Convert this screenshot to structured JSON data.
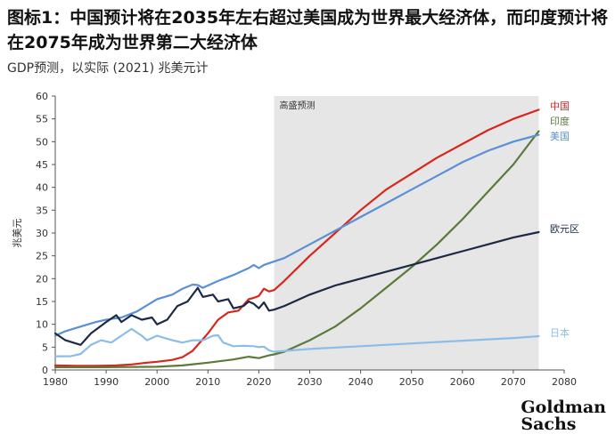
{
  "title": "图标1：中国预计将在2035年左右超过美国成为世界最大经济体，而印度预计将在2075年成为世界第二大经济体",
  "subtitle": "GDP预测，以实际 (2021) 兆美元计",
  "brand": {
    "line1": "Goldman",
    "line2": "Sachs"
  },
  "chart_data": {
    "type": "line",
    "ylabel": "兆美元",
    "xlim": [
      1980,
      2080
    ],
    "ylim": [
      0,
      60
    ],
    "x_ticks": [
      1980,
      1990,
      2000,
      2010,
      2020,
      2030,
      2040,
      2050,
      2060,
      2070,
      2080
    ],
    "y_ticks": [
      0,
      5,
      10,
      15,
      20,
      25,
      30,
      35,
      40,
      45,
      50,
      55,
      60
    ],
    "shaded_region": {
      "label": "高盛预测",
      "x_start": 2023,
      "x_end": 2075,
      "color": "#e6e6e6"
    },
    "grid": false,
    "legend": "right-end labels",
    "series": [
      {
        "name": "中国",
        "color": "#d9261c",
        "points": [
          [
            1980,
            1.0
          ],
          [
            1984,
            0.9
          ],
          [
            1988,
            0.9
          ],
          [
            1992,
            1.0
          ],
          [
            1995,
            1.2
          ],
          [
            1998,
            1.6
          ],
          [
            2000,
            1.8
          ],
          [
            2003,
            2.2
          ],
          [
            2005,
            2.8
          ],
          [
            2007,
            4.2
          ],
          [
            2008,
            5.5
          ],
          [
            2010,
            8.0
          ],
          [
            2012,
            11.0
          ],
          [
            2014,
            12.6
          ],
          [
            2016,
            13.0
          ],
          [
            2018,
            15.5
          ],
          [
            2019,
            15.8
          ],
          [
            2020,
            16.2
          ],
          [
            2021,
            17.8
          ],
          [
            2022,
            17.2
          ],
          [
            2023,
            17.5
          ],
          [
            2025,
            19.5
          ],
          [
            2030,
            25.0
          ],
          [
            2035,
            30.0
          ],
          [
            2040,
            35.0
          ],
          [
            2045,
            39.5
          ],
          [
            2050,
            43.0
          ],
          [
            2055,
            46.5
          ],
          [
            2060,
            49.5
          ],
          [
            2065,
            52.5
          ],
          [
            2070,
            55.0
          ],
          [
            2075,
            57.0
          ]
        ]
      },
      {
        "name": "印度",
        "color": "#5b7a3a",
        "points": [
          [
            1980,
            0.6
          ],
          [
            1990,
            0.6
          ],
          [
            2000,
            0.7
          ],
          [
            2005,
            1.0
          ],
          [
            2010,
            1.6
          ],
          [
            2015,
            2.3
          ],
          [
            2018,
            2.9
          ],
          [
            2020,
            2.6
          ],
          [
            2022,
            3.2
          ],
          [
            2023,
            3.4
          ],
          [
            2025,
            4.0
          ],
          [
            2030,
            6.5
          ],
          [
            2035,
            9.5
          ],
          [
            2040,
            13.5
          ],
          [
            2045,
            18.0
          ],
          [
            2050,
            22.5
          ],
          [
            2055,
            27.5
          ],
          [
            2060,
            33.0
          ],
          [
            2065,
            39.0
          ],
          [
            2070,
            45.0
          ],
          [
            2075,
            52.3
          ]
        ]
      },
      {
        "name": "美国",
        "color": "#5b8fd6",
        "points": [
          [
            1980,
            7.5
          ],
          [
            1982,
            8.5
          ],
          [
            1985,
            9.5
          ],
          [
            1988,
            10.5
          ],
          [
            1990,
            11.0
          ],
          [
            1993,
            11.5
          ],
          [
            1996,
            12.8
          ],
          [
            2000,
            15.5
          ],
          [
            2003,
            16.5
          ],
          [
            2005,
            17.8
          ],
          [
            2007,
            18.7
          ],
          [
            2008,
            18.6
          ],
          [
            2009,
            18.0
          ],
          [
            2012,
            19.5
          ],
          [
            2015,
            20.8
          ],
          [
            2018,
            22.3
          ],
          [
            2019,
            23.0
          ],
          [
            2020,
            22.3
          ],
          [
            2021,
            23.0
          ],
          [
            2022,
            23.4
          ],
          [
            2025,
            24.5
          ],
          [
            2030,
            27.5
          ],
          [
            2035,
            30.5
          ],
          [
            2040,
            33.5
          ],
          [
            2045,
            36.5
          ],
          [
            2050,
            39.5
          ],
          [
            2055,
            42.5
          ],
          [
            2060,
            45.5
          ],
          [
            2065,
            48.0
          ],
          [
            2070,
            50.0
          ],
          [
            2075,
            51.5
          ]
        ]
      },
      {
        "name": "欧元区",
        "color": "#1b2a45",
        "points": [
          [
            1980,
            8.0
          ],
          [
            1982,
            6.5
          ],
          [
            1985,
            5.5
          ],
          [
            1987,
            8.0
          ],
          [
            1990,
            10.5
          ],
          [
            1992,
            12.0
          ],
          [
            1993,
            10.5
          ],
          [
            1995,
            12.0
          ],
          [
            1997,
            11.0
          ],
          [
            1999,
            11.5
          ],
          [
            2000,
            10.0
          ],
          [
            2002,
            11.0
          ],
          [
            2004,
            14.0
          ],
          [
            2006,
            15.0
          ],
          [
            2008,
            18.0
          ],
          [
            2009,
            16.0
          ],
          [
            2011,
            16.5
          ],
          [
            2012,
            15.0
          ],
          [
            2014,
            15.5
          ],
          [
            2015,
            13.5
          ],
          [
            2017,
            14.0
          ],
          [
            2018,
            15.0
          ],
          [
            2019,
            14.5
          ],
          [
            2020,
            13.5
          ],
          [
            2021,
            14.8
          ],
          [
            2022,
            13.0
          ],
          [
            2023,
            13.2
          ],
          [
            2025,
            14.0
          ],
          [
            2030,
            16.5
          ],
          [
            2035,
            18.5
          ],
          [
            2040,
            20.0
          ],
          [
            2045,
            21.5
          ],
          [
            2050,
            23.0
          ],
          [
            2055,
            24.5
          ],
          [
            2060,
            26.0
          ],
          [
            2065,
            27.5
          ],
          [
            2070,
            29.0
          ],
          [
            2075,
            30.2
          ]
        ]
      },
      {
        "name": "日本",
        "color": "#8cbde8",
        "points": [
          [
            1980,
            3.0
          ],
          [
            1983,
            3.0
          ],
          [
            1985,
            3.5
          ],
          [
            1987,
            5.5
          ],
          [
            1989,
            6.5
          ],
          [
            1991,
            6.0
          ],
          [
            1993,
            7.5
          ],
          [
            1995,
            9.0
          ],
          [
            1997,
            7.5
          ],
          [
            1998,
            6.5
          ],
          [
            2000,
            7.5
          ],
          [
            2003,
            6.5
          ],
          [
            2005,
            6.0
          ],
          [
            2007,
            6.5
          ],
          [
            2009,
            6.5
          ],
          [
            2011,
            7.5
          ],
          [
            2012,
            7.6
          ],
          [
            2013,
            6.0
          ],
          [
            2015,
            5.2
          ],
          [
            2017,
            5.3
          ],
          [
            2019,
            5.2
          ],
          [
            2020,
            5.0
          ],
          [
            2021,
            5.1
          ],
          [
            2022,
            4.3
          ],
          [
            2023,
            4.0
          ],
          [
            2030,
            4.6
          ],
          [
            2040,
            5.2
          ],
          [
            2050,
            5.8
          ],
          [
            2060,
            6.4
          ],
          [
            2070,
            7.0
          ],
          [
            2075,
            7.4
          ]
        ]
      }
    ]
  }
}
